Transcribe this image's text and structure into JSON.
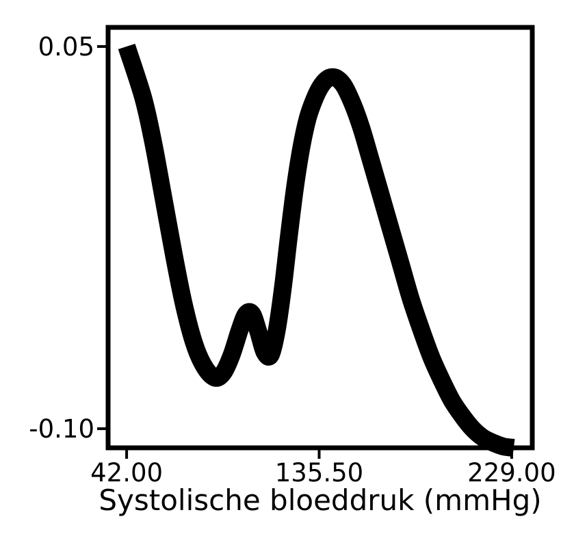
{
  "chart_data": {
    "type": "line",
    "title": "",
    "xlabel": "Systolische bloeddruk (mmHg)",
    "ylabel": "",
    "xlim": [
      33,
      239
    ],
    "ylim": [
      -0.1075,
      0.0575
    ],
    "x_ticks": [
      42,
      135.5,
      229
    ],
    "x_tick_labels": [
      "42.00",
      "135.50",
      "229.00"
    ],
    "y_ticks": [
      0.05,
      -0.1
    ],
    "y_tick_labels": [
      "0.05",
      "-0.10"
    ],
    "grid": false,
    "legend": "none",
    "series": [
      {
        "color": "#000000",
        "x": [
          42,
          50,
          55,
          60,
          65,
          70,
          75,
          80,
          85,
          89,
          93,
          97,
          100,
          103,
          106,
          109,
          112,
          115,
          118,
          121,
          124,
          127,
          130,
          133,
          136,
          139,
          142,
          145,
          148,
          152,
          156,
          160,
          165,
          170,
          175,
          180,
          185,
          190,
          195,
          200,
          205,
          210,
          215,
          220,
          225,
          230
        ],
        "y": [
          0.05,
          0.03,
          0.012,
          -0.01,
          -0.032,
          -0.052,
          -0.067,
          -0.076,
          -0.08,
          -0.078,
          -0.071,
          -0.061,
          -0.055,
          -0.055,
          -0.062,
          -0.07,
          -0.071,
          -0.061,
          -0.044,
          -0.023,
          -0.004,
          0.011,
          0.022,
          0.029,
          0.034,
          0.037,
          0.038,
          0.037,
          0.034,
          0.027,
          0.018,
          0.007,
          -0.007,
          -0.021,
          -0.035,
          -0.049,
          -0.061,
          -0.072,
          -0.081,
          -0.089,
          -0.095,
          -0.1,
          -0.1035,
          -0.1055,
          -0.107,
          -0.1075
        ]
      }
    ]
  }
}
